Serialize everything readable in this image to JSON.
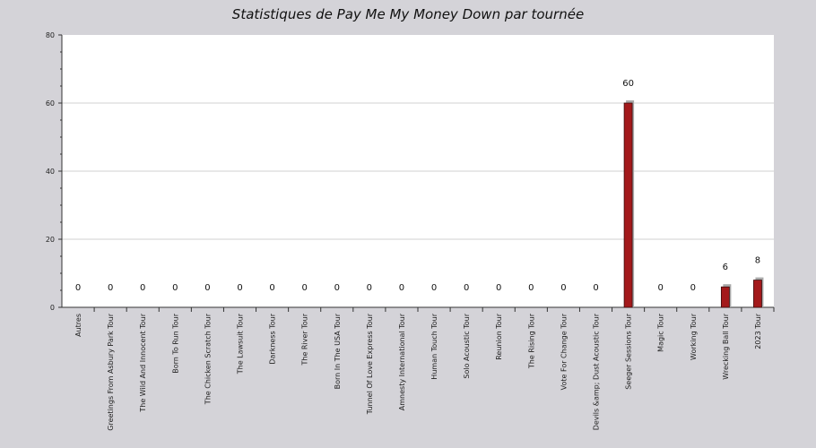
{
  "chart_data": {
    "type": "bar",
    "title": "Statistiques de Pay Me My Money Down par tournée",
    "xlabel": "",
    "ylabel": "",
    "ylim": [
      0,
      80
    ],
    "yticks": [
      0,
      20,
      40,
      60,
      80
    ],
    "grid": true,
    "bar_color": "#a3191b",
    "shadow_color": "#aaaaaa",
    "categories": [
      "Autres",
      "Greetings From Asbury Park Tour",
      "The Wild And Innocent Tour",
      "Born To Run Tour",
      "The Chicken Scratch Tour",
      "The Lawsuit Tour",
      "Darkness Tour",
      "The River Tour",
      "Born In The USA Tour",
      "Tunnel Of Love Express Tour",
      "Amnesty International Tour",
      "Human Touch Tour",
      "Solo Acoustic Tour",
      "Reunion Tour",
      "The Rising Tour",
      "Vote For Change Tour",
      "Devils &amp; Dust Acoustic Tour",
      "Seeger Sessions Tour",
      "Magic Tour",
      "Working Tour",
      "Wrecking Ball Tour",
      "2023 Tour"
    ],
    "values": [
      0,
      0,
      0,
      0,
      0,
      0,
      0,
      0,
      0,
      0,
      0,
      0,
      0,
      0,
      0,
      0,
      0,
      60,
      0,
      0,
      6,
      8
    ],
    "labels": [
      "0",
      "0",
      "0",
      "0",
      "0",
      "0",
      "0",
      "0",
      "0",
      "0",
      "0",
      "0",
      "0",
      "0",
      "0",
      "0",
      "0",
      "60",
      "0",
      "0",
      "6",
      "8"
    ]
  }
}
